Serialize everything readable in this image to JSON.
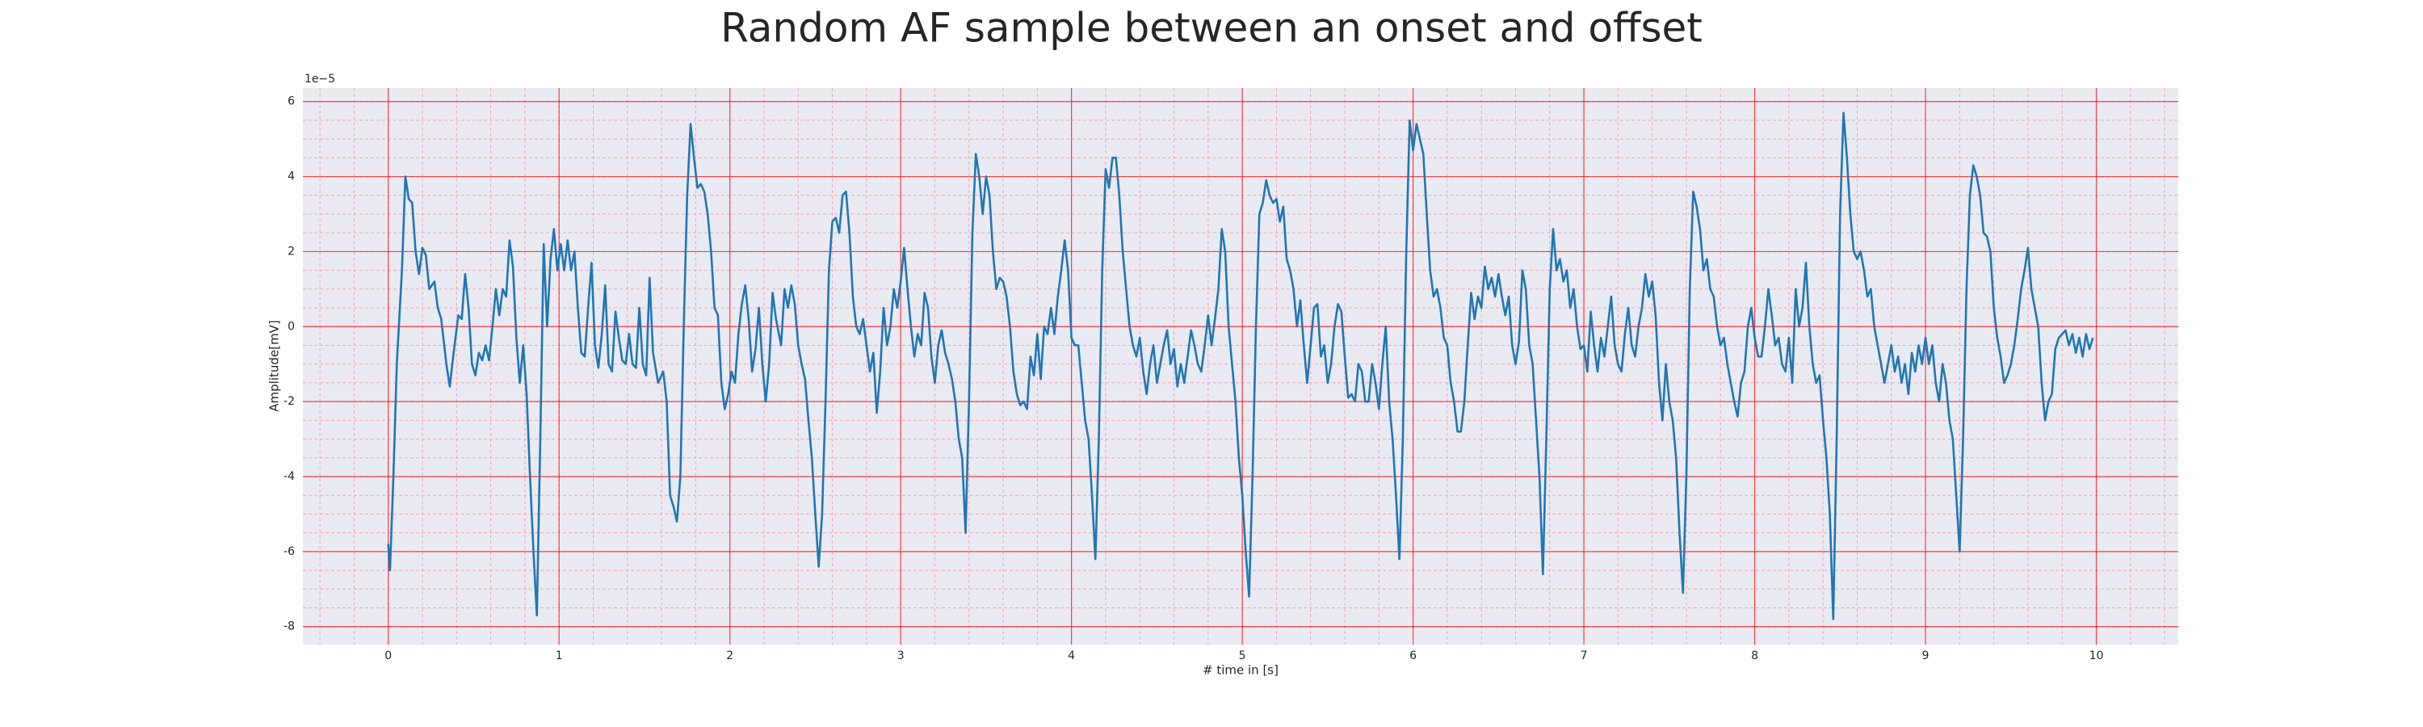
{
  "chart_data": {
    "type": "line",
    "title": "Random AF sample between an onset and offset",
    "xlabel": "# time in [s]",
    "ylabel": "Amplitude[mV]",
    "y_offset_label": "1e−5",
    "xlim": [
      -0.5,
      10.48
    ],
    "ylim": [
      -8.48,
      6.36
    ],
    "xticks": [
      0,
      1,
      2,
      3,
      4,
      5,
      6,
      7,
      8,
      9,
      10
    ],
    "yticks": [
      -8,
      -6,
      -4,
      -2,
      0,
      2,
      4,
      6
    ],
    "grid": true,
    "grid_color": "#ff0000",
    "minor_grid": {
      "x_step": 0.2,
      "y_step": 0.5,
      "color": "#f4a6b6"
    },
    "background": "#eaeaf2",
    "series": [
      {
        "name": null,
        "color": "#1f77b4",
        "x": [
          0.0,
          0.01,
          0.03,
          0.05,
          0.08,
          0.1,
          0.12,
          0.14,
          0.16,
          0.18,
          0.2,
          0.22,
          0.24,
          0.27,
          0.29,
          0.31,
          0.34,
          0.36,
          0.38,
          0.41,
          0.43,
          0.45,
          0.47,
          0.49,
          0.51,
          0.53,
          0.55,
          0.57,
          0.59,
          0.61,
          0.63,
          0.65,
          0.67,
          0.69,
          0.71,
          0.73,
          0.75,
          0.77,
          0.79,
          0.81,
          0.83,
          0.85,
          0.87,
          0.89,
          0.91,
          0.93,
          0.95,
          0.97,
          0.99,
          1.01,
          1.03,
          1.05,
          1.07,
          1.09,
          1.11,
          1.13,
          1.15,
          1.17,
          1.19,
          1.21,
          1.23,
          1.25,
          1.27,
          1.29,
          1.31,
          1.33,
          1.35,
          1.37,
          1.39,
          1.41,
          1.43,
          1.45,
          1.47,
          1.49,
          1.51,
          1.53,
          1.55,
          1.58,
          1.61,
          1.63,
          1.65,
          1.67,
          1.69,
          1.71,
          1.73,
          1.75,
          1.77,
          1.79,
          1.81,
          1.83,
          1.85,
          1.87,
          1.89,
          1.91,
          1.93,
          1.95,
          1.97,
          1.99,
          2.01,
          2.03,
          2.05,
          2.07,
          2.09,
          2.11,
          2.13,
          2.15,
          2.17,
          2.19,
          2.21,
          2.23,
          2.25,
          2.27,
          2.3,
          2.32,
          2.34,
          2.36,
          2.38,
          2.4,
          2.42,
          2.44,
          2.46,
          2.48,
          2.5,
          2.52,
          2.54,
          2.56,
          2.58,
          2.6,
          2.62,
          2.64,
          2.66,
          2.68,
          2.7,
          2.72,
          2.74,
          2.76,
          2.78,
          2.8,
          2.82,
          2.84,
          2.86,
          2.88,
          2.9,
          2.92,
          2.94,
          2.96,
          2.98,
          3.0,
          3.02,
          3.04,
          3.06,
          3.08,
          3.1,
          3.12,
          3.14,
          3.16,
          3.18,
          3.2,
          3.22,
          3.24,
          3.26,
          3.28,
          3.3,
          3.32,
          3.34,
          3.36,
          3.38,
          3.4,
          3.42,
          3.44,
          3.46,
          3.48,
          3.5,
          3.52,
          3.54,
          3.56,
          3.58,
          3.6,
          3.62,
          3.64,
          3.66,
          3.68,
          3.7,
          3.72,
          3.74,
          3.76,
          3.78,
          3.8,
          3.82,
          3.84,
          3.86,
          3.88,
          3.9,
          3.92,
          3.94,
          3.96,
          3.98,
          4.0,
          4.02,
          4.04,
          4.06,
          4.08,
          4.1,
          4.12,
          4.14,
          4.16,
          4.18,
          4.2,
          4.22,
          4.24,
          4.26,
          4.28,
          4.3,
          4.32,
          4.34,
          4.36,
          4.38,
          4.4,
          4.42,
          4.44,
          4.46,
          4.48,
          4.5,
          4.52,
          4.54,
          4.56,
          4.58,
          4.6,
          4.62,
          4.64,
          4.66,
          4.68,
          4.7,
          4.72,
          4.74,
          4.76,
          4.78,
          4.8,
          4.82,
          4.84,
          4.86,
          4.88,
          4.9,
          4.92,
          4.94,
          4.96,
          4.98,
          5.0,
          5.02,
          5.04,
          5.06,
          5.08,
          5.1,
          5.12,
          5.14,
          5.16,
          5.18,
          5.2,
          5.22,
          5.24,
          5.26,
          5.28,
          5.3,
          5.32,
          5.34,
          5.36,
          5.38,
          5.4,
          5.42,
          5.44,
          5.46,
          5.48,
          5.5,
          5.52,
          5.54,
          5.56,
          5.58,
          5.6,
          5.62,
          5.64,
          5.66,
          5.68,
          5.7,
          5.72,
          5.74,
          5.76,
          5.78,
          5.8,
          5.82,
          5.84,
          5.86,
          5.88,
          5.9,
          5.92,
          5.94,
          5.96,
          5.98,
          6.0,
          6.02,
          6.04,
          6.06,
          6.08,
          6.1,
          6.12,
          6.14,
          6.16,
          6.18,
          6.2,
          6.22,
          6.24,
          6.26,
          6.28,
          6.3,
          6.32,
          6.34,
          6.36,
          6.38,
          6.4,
          6.42,
          6.44,
          6.46,
          6.48,
          6.5,
          6.52,
          6.54,
          6.56,
          6.58,
          6.6,
          6.62,
          6.64,
          6.66,
          6.68,
          6.7,
          6.72,
          6.74,
          6.76,
          6.78,
          6.8,
          6.82,
          6.84,
          6.86,
          6.88,
          6.9,
          6.92,
          6.94,
          6.96,
          6.98,
          7.0,
          7.02,
          7.04,
          7.06,
          7.08,
          7.1,
          7.12,
          7.14,
          7.16,
          7.18,
          7.2,
          7.22,
          7.24,
          7.26,
          7.28,
          7.3,
          7.32,
          7.34,
          7.36,
          7.38,
          7.4,
          7.42,
          7.44,
          7.46,
          7.48,
          7.5,
          7.52,
          7.54,
          7.56,
          7.58,
          7.6,
          7.62,
          7.64,
          7.66,
          7.68,
          7.7,
          7.72,
          7.74,
          7.76,
          7.78,
          7.8,
          7.82,
          7.84,
          7.86,
          7.88,
          7.9,
          7.92,
          7.94,
          7.96,
          7.98,
          8.0,
          8.02,
          8.04,
          8.06,
          8.08,
          8.1,
          8.12,
          8.14,
          8.16,
          8.18,
          8.2,
          8.22,
          8.24,
          8.26,
          8.28,
          8.3,
          8.32,
          8.34,
          8.36,
          8.38,
          8.4,
          8.42,
          8.44,
          8.46,
          8.48,
          8.5,
          8.52,
          8.54,
          8.56,
          8.58,
          8.6,
          8.62,
          8.64,
          8.66,
          8.68,
          8.7,
          8.72,
          8.74,
          8.76,
          8.78,
          8.8,
          8.82,
          8.84,
          8.86,
          8.88,
          8.9,
          8.92,
          8.94,
          8.96,
          8.98,
          9.0,
          9.02,
          9.04,
          9.06,
          9.08,
          9.1,
          9.12,
          9.14,
          9.16,
          9.18,
          9.2,
          9.22,
          9.24,
          9.26,
          9.28,
          9.3,
          9.32,
          9.34,
          9.36,
          9.38,
          9.4,
          9.42,
          9.44,
          9.46,
          9.48,
          9.5,
          9.52,
          9.54,
          9.56,
          9.58,
          9.6,
          9.62,
          9.64,
          9.66,
          9.68,
          9.7,
          9.72,
          9.74,
          9.76,
          9.78,
          9.8,
          9.82,
          9.84,
          9.86,
          9.88,
          9.9,
          9.92,
          9.94,
          9.96,
          9.98
        ],
        "values": [
          -5.8,
          -6.5,
          -4,
          -1,
          1.5,
          4.0,
          3.4,
          3.3,
          2.0,
          1.4,
          2.1,
          1.9,
          1.0,
          1.2,
          0.5,
          0.2,
          -1.0,
          -1.6,
          -0.8,
          0.3,
          0.2,
          1.4,
          0.5,
          -1.0,
          -1.3,
          -0.7,
          -0.9,
          -0.5,
          -0.9,
          0.0,
          1.0,
          0.3,
          1.0,
          0.8,
          2.3,
          1.6,
          -0.3,
          -1.5,
          -0.5,
          -1.8,
          -4.0,
          -6.0,
          -7.7,
          -3,
          2.2,
          0.0,
          1.8,
          2.6,
          1.5,
          2.2,
          1.5,
          2.3,
          1.5,
          2.0,
          0.5,
          -0.7,
          -0.8,
          0.5,
          1.7,
          -0.5,
          -1.1,
          -0.2,
          1.1,
          -1.0,
          -1.2,
          0.4,
          -0.3,
          -0.9,
          -1.0,
          -0.2,
          -1.0,
          -1.1,
          0.5,
          -1.0,
          -1.3,
          1.3,
          -0.7,
          -1.5,
          -1.2,
          -2.0,
          -4.5,
          -4.8,
          -5.2,
          -4,
          0,
          3.5,
          5.4,
          4.5,
          3.7,
          3.8,
          3.6,
          3.0,
          2.0,
          0.5,
          0.3,
          -1.5,
          -2.2,
          -1.8,
          -1.2,
          -1.5,
          -0.2,
          0.6,
          1.1,
          0.2,
          -1.2,
          -0.6,
          0.5,
          -1.0,
          -2.0,
          -1.0,
          0.9,
          0.2,
          -0.5,
          1.0,
          0.5,
          1.1,
          0.6,
          -0.5,
          -1.0,
          -1.4,
          -2.5,
          -3.5,
          -5.0,
          -6.4,
          -5,
          -2,
          1.5,
          2.8,
          2.9,
          2.5,
          3.5,
          3.6,
          2.5,
          0.8,
          0.0,
          -0.2,
          0.2,
          -0.5,
          -1.2,
          -0.7,
          -2.3,
          -1.2,
          0.5,
          -0.5,
          0.0,
          1.0,
          0.5,
          1.2,
          2.1,
          1.0,
          0.0,
          -0.8,
          -0.2,
          -0.5,
          0.9,
          0.5,
          -0.8,
          -1.5,
          -0.5,
          -0.1,
          -0.7,
          -1.0,
          -1.4,
          -2.0,
          -3.0,
          -3.5,
          -5.5,
          -2,
          2.5,
          4.6,
          4.0,
          3.0,
          4.0,
          3.5,
          2.0,
          1.0,
          1.3,
          1.2,
          0.8,
          0.0,
          -1.2,
          -1.8,
          -2.1,
          -2.0,
          -2.2,
          -0.8,
          -1.3,
          -0.2,
          -1.4,
          0.0,
          -0.2,
          0.5,
          -0.2,
          0.8,
          1.5,
          2.3,
          1.5,
          -0.3,
          -0.5,
          -0.5,
          -1.5,
          -2.5,
          -3.0,
          -4.5,
          -6.2,
          -3,
          1.5,
          4.2,
          3.7,
          4.5,
          4.5,
          3.5,
          2.0,
          1.0,
          0.0,
          -0.5,
          -0.8,
          -0.3,
          -1.2,
          -1.8,
          -1.0,
          -0.5,
          -1.5,
          -1.0,
          -0.5,
          -0.1,
          -1.0,
          -0.6,
          -1.6,
          -1.0,
          -1.5,
          -0.8,
          -0.1,
          -0.5,
          -1.0,
          -1.2,
          -0.5,
          0.3,
          -0.5,
          0.2,
          1.0,
          2.6,
          2.0,
          0.0,
          -1.0,
          -2.0,
          -3.5,
          -4.5,
          -6.0,
          -7.2,
          -4,
          0,
          3.0,
          3.3,
          3.9,
          3.5,
          3.3,
          3.4,
          2.8,
          3.2,
          1.8,
          1.5,
          1.0,
          0.0,
          0.7,
          -0.5,
          -1.5,
          -0.5,
          0.5,
          0.6,
          -0.8,
          -0.5,
          -1.5,
          -1.0,
          0.0,
          0.6,
          0.4,
          -0.8,
          -1.9,
          -1.8,
          -2.0,
          -1.0,
          -1.2,
          -2.0,
          -2.0,
          -1.0,
          -1.5,
          -2.2,
          -1.0,
          0.0,
          -2.0,
          -3.0,
          -4.5,
          -6.2,
          -3,
          2,
          5.5,
          4.7,
          5.4,
          5.0,
          4.6,
          3.0,
          1.5,
          0.8,
          1.0,
          0.5,
          -0.3,
          -0.5,
          -1.5,
          -2.0,
          -2.8,
          -2.8,
          -2.0,
          -0.5,
          0.9,
          0.2,
          0.8,
          0.5,
          1.6,
          1.0,
          1.3,
          0.8,
          1.4,
          0.8,
          0.3,
          0.8,
          -0.5,
          -1.0,
          -0.4,
          1.5,
          1.0,
          -0.5,
          -1.0,
          -2.5,
          -4.0,
          -6.6,
          -3,
          1,
          2.6,
          1.5,
          1.8,
          1.2,
          1.5,
          0.5,
          1.0,
          0.0,
          -0.6,
          -0.5,
          -1.2,
          0.4,
          -0.5,
          -1.2,
          -0.3,
          -0.8,
          0.0,
          0.8,
          -0.5,
          -1.0,
          -1.2,
          -0.2,
          0.5,
          -0.5,
          -0.8,
          0.0,
          0.5,
          1.4,
          0.8,
          1.2,
          0.3,
          -1.5,
          -2.5,
          -1.0,
          -2.0,
          -2.5,
          -3.5,
          -5.5,
          -7.1,
          -4,
          1,
          3.6,
          3.2,
          2.6,
          1.5,
          1.8,
          1.0,
          0.8,
          0.0,
          -0.5,
          -0.3,
          -1.0,
          -1.5,
          -2.0,
          -2.4,
          -1.5,
          -1.2,
          0.0,
          0.5,
          -0.3,
          -0.8,
          -0.8,
          0.0,
          1.0,
          0.3,
          -0.5,
          -0.3,
          -1.0,
          -1.2,
          -0.3,
          -1.5,
          1.0,
          0.0,
          0.5,
          1.7,
          0.0,
          -1.0,
          -1.5,
          -1.3,
          -2.5,
          -3.5,
          -5.0,
          -7.8,
          -3,
          3,
          5.7,
          4.5,
          3.0,
          2.0,
          1.8,
          2.0,
          1.5,
          0.8,
          1.0,
          0.0,
          -0.5,
          -1.0,
          -1.5,
          -1.0,
          -0.5,
          -1.2,
          -0.8,
          -1.5,
          -1.0,
          -1.8,
          -0.7,
          -1.2,
          -0.5,
          -1.0,
          -0.3,
          -1.0,
          -0.5,
          -1.5,
          -2.0,
          -1.0,
          -1.5,
          -2.5,
          -3.0,
          -4.5,
          -6.0,
          -3,
          1,
          3.5,
          4.3,
          4.0,
          3.5,
          2.5,
          2.4,
          2.0,
          0.5,
          -0.3,
          -0.8,
          -1.5,
          -1.3,
          -1.0,
          -0.5,
          0.2,
          1.0,
          1.5,
          2.1,
          1.0,
          0.5,
          0.0,
          -1.5,
          -2.5,
          -2.0,
          -1.8,
          -0.6,
          -0.3,
          -0.2,
          -0.1,
          -0.5,
          -0.2,
          -0.7,
          -0.3,
          -0.8,
          -0.2,
          -0.6,
          -0.3
        ]
      }
    ]
  }
}
